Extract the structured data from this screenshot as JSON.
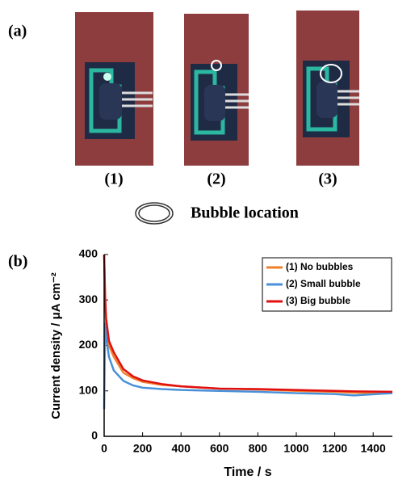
{
  "panel_a": {
    "label": "(a)",
    "photo_labels": [
      "(1)",
      "(2)",
      "(3)"
    ],
    "legend_text": "Bubble location"
  },
  "chart_data": {
    "type": "line",
    "panel_label": "(b)",
    "x_label": "Time / s",
    "y_label": "Current density / μA cm⁻²",
    "x": [
      0,
      5,
      10,
      25,
      50,
      100,
      150,
      200,
      300,
      400,
      600,
      800,
      1000,
      1200,
      1300,
      1500
    ],
    "series": [
      {
        "name": "(1) No bubbles",
        "color": "#f07f2a",
        "values": [
          400,
          300,
          250,
          200,
          175,
          140,
          128,
          120,
          113,
          110,
          105,
          103,
          100,
          98,
          96,
          95
        ]
      },
      {
        "name": "(2) Small bubble",
        "color": "#4a90d9",
        "values": [
          60,
          250,
          220,
          175,
          145,
          122,
          112,
          107,
          104,
          102,
          100,
          98,
          95,
          93,
          90,
          95
        ]
      },
      {
        "name": "(3) Big bubble",
        "color": "#e01010",
        "values": [
          400,
          310,
          260,
          210,
          185,
          148,
          132,
          123,
          115,
          110,
          105,
          104,
          102,
          100,
          99,
          98
        ]
      }
    ],
    "xlim": [
      0,
      1500
    ],
    "ylim": [
      0,
      400
    ],
    "xticks": [
      0,
      200,
      400,
      600,
      800,
      1000,
      1200,
      1400
    ],
    "yticks": [
      0,
      100,
      200,
      300,
      400
    ],
    "legend": "upper right"
  }
}
